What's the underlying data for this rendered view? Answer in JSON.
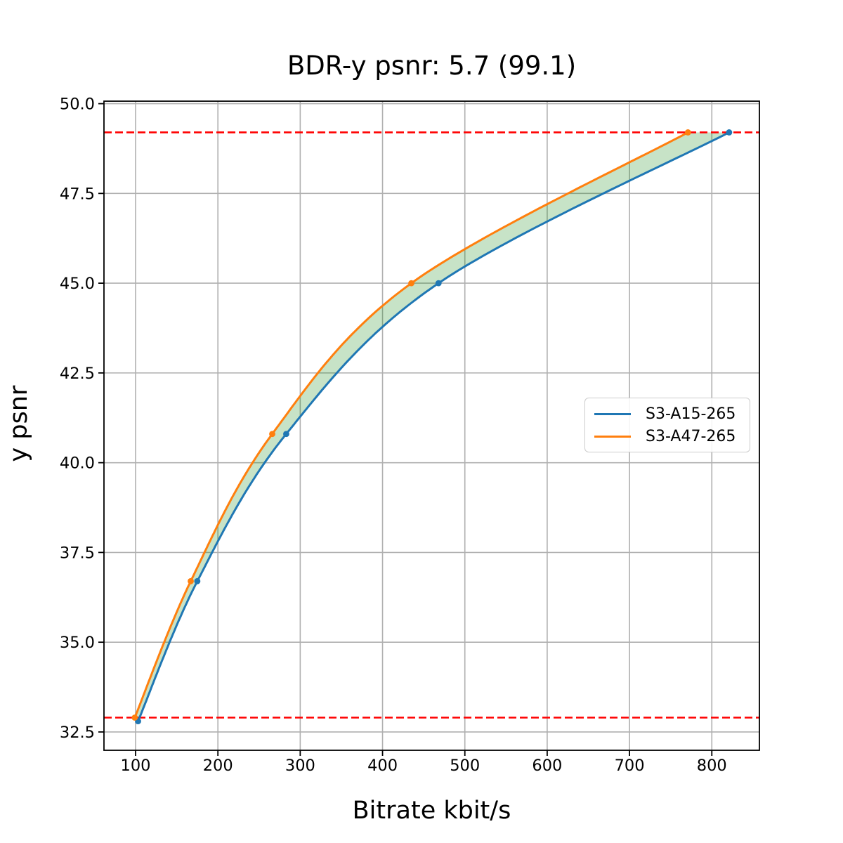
{
  "figure": {
    "title": "BDR-y psnr: 5.7 (99.1)",
    "xlabel": "Bitrate kbit/s",
    "ylabel": "y psnr"
  },
  "legend": {
    "items": [
      {
        "label": "S3-A15-265",
        "color": "#1f77b4"
      },
      {
        "label": "S3-A47-265",
        "color": "#ff7f0e"
      }
    ]
  },
  "colors": {
    "background": "#ffffff",
    "text": "#000000",
    "grid": "#b0b0b0",
    "frame": "#000000",
    "series_blue": "#1f77b4",
    "series_orange": "#ff7f0e",
    "reference_red": "#ff0000",
    "fill_green": "#008000"
  },
  "chart_data": {
    "type": "line",
    "title": "BDR-y psnr: 5.7 (99.1)",
    "xlabel": "Bitrate kbit/s",
    "ylabel": "y psnr",
    "xlim": [
      61.6,
      857.8
    ],
    "ylim": [
      31.99,
      50.07
    ],
    "x_ticks": [
      100,
      200,
      300,
      400,
      500,
      600,
      700,
      800
    ],
    "y_ticks": [
      32.5,
      35.0,
      37.5,
      40.0,
      42.5,
      45.0,
      47.5,
      50.0
    ],
    "grid": true,
    "legend_position": "center right",
    "series": [
      {
        "name": "S3-A15-265",
        "color": "#1f77b4",
        "marker": "circle",
        "points": [
          [
            103,
            32.8
          ],
          [
            175,
            36.7
          ],
          [
            283,
            40.8
          ],
          [
            468,
            45.0
          ],
          [
            821,
            49.2
          ]
        ]
      },
      {
        "name": "S3-A47-265",
        "color": "#ff7f0e",
        "marker": "circle",
        "points": [
          [
            99,
            32.9
          ],
          [
            167,
            36.7
          ],
          [
            266,
            40.8
          ],
          [
            435,
            45.0
          ],
          [
            771,
            49.2
          ]
        ]
      }
    ],
    "reference_lines": [
      {
        "y": 49.2,
        "color": "#ff0000",
        "style": "dashed"
      },
      {
        "y": 32.9,
        "color": "#ff0000",
        "style": "dashed"
      }
    ],
    "fill_between": {
      "upper_series": "S3-A47-265",
      "lower_series": "S3-A15-265",
      "color": "#008000",
      "opacity": 0.22,
      "y_range": [
        32.9,
        49.2
      ]
    }
  }
}
